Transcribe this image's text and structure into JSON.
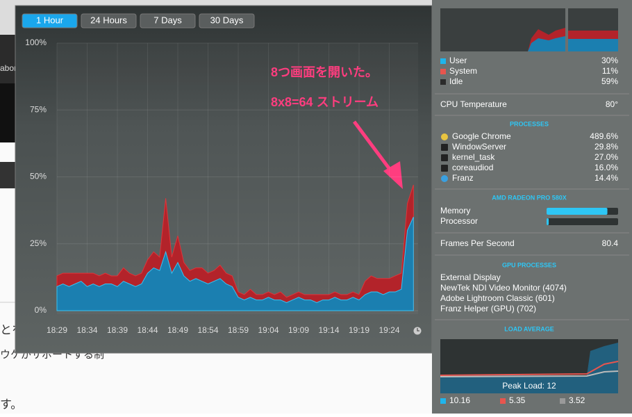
{
  "background": {
    "texts": [
      "abor",
      "とを",
      "ウケがサポートする制",
      "す。"
    ]
  },
  "tabs": {
    "items": [
      "1 Hour",
      "24 Hours",
      "7 Days",
      "30 Days"
    ],
    "active": 0,
    "active_color": "#1aa7ec"
  },
  "chart_data": {
    "type": "area",
    "stacked": true,
    "annotations": [
      "8つ画面を開いた。",
      "8x8=64 ストリーム"
    ],
    "categories": [
      "18:29",
      null,
      null,
      null,
      null,
      "18:34",
      null,
      null,
      null,
      null,
      "18:39",
      null,
      null,
      null,
      null,
      "18:44",
      null,
      null,
      null,
      null,
      "18:49",
      null,
      null,
      null,
      null,
      "18:54",
      null,
      null,
      null,
      null,
      "18:59",
      null,
      null,
      null,
      null,
      "19:04",
      null,
      null,
      null,
      null,
      "19:09",
      null,
      null,
      null,
      null,
      "19:14",
      null,
      null,
      null,
      null,
      "19:19",
      null,
      null,
      null,
      null,
      "19:24",
      null,
      null,
      null,
      null
    ],
    "series": [
      {
        "name": "User",
        "color": "#1b7fb0",
        "values": [
          9,
          10,
          9,
          10,
          11,
          9,
          10,
          9,
          10,
          10,
          9,
          11,
          10,
          9,
          10,
          14,
          16,
          15,
          22,
          14,
          18,
          13,
          11,
          12,
          11,
          10,
          11,
          12,
          10,
          9,
          5,
          4,
          5,
          4,
          4,
          5,
          4,
          4,
          3,
          4,
          5,
          4,
          4,
          3,
          4,
          4,
          5,
          4,
          4,
          5,
          4,
          6,
          7,
          7,
          6,
          7,
          7,
          8,
          30,
          35
        ]
      },
      {
        "name": "System",
        "color": "#b3232a",
        "values": [
          4,
          4,
          5,
          4,
          3,
          5,
          4,
          4,
          4,
          3,
          4,
          5,
          4,
          4,
          4,
          5,
          6,
          5,
          20,
          6,
          10,
          5,
          4,
          4,
          5,
          4,
          4,
          5,
          4,
          4,
          2,
          2,
          3,
          2,
          2,
          2,
          2,
          3,
          2,
          2,
          2,
          2,
          2,
          3,
          2,
          2,
          2,
          2,
          2,
          2,
          2,
          5,
          6,
          5,
          6,
          5,
          6,
          6,
          10,
          12
        ]
      }
    ],
    "ylim": [
      0,
      100
    ],
    "yticks": [
      {
        "value": 0,
        "label": "0%"
      },
      {
        "value": 25,
        "label": "25%"
      },
      {
        "value": 50,
        "label": "50%"
      },
      {
        "value": 75,
        "label": "75%"
      },
      {
        "value": 100,
        "label": "100%"
      }
    ],
    "grid": true
  },
  "menu": {
    "cpu": {
      "rows": [
        {
          "value": "30%"
        },
        {
          "value": "11%"
        },
        {
          "label": "Idle",
          "value": "59%",
          "color": "#2b2b2b"
        }
      ]
    },
    "temperature": {
      "label": "CPU Temperature",
      "value": "80°"
    },
    "processes": {
      "title": "PROCESSES",
      "rows": [
        {
          "name": "Google Chrome",
          "value": "489.6%"
        },
        {
          "name": "WindowServer",
          "value": "29.8%"
        },
        {
          "name": "kernel_task",
          "value": "27.0%"
        },
        {
          "name": "coreaudiod",
          "value": "16.0%"
        },
        {
          "name": "Franz",
          "value": "14.4%"
        }
      ]
    },
    "gpu": {
      "title": "AMD RADEON PRO 580X",
      "xlim": [
        0,
        100
      ],
      "color": "#2ec6f5",
      "bars": [
        {
          "label": "Memory",
          "value": 85
        },
        {
          "label": "Processor",
          "value": 3
        }
      ],
      "fps": {
        "label": "Frames Per Second",
        "value": "80.4"
      }
    },
    "gpu_processes": {
      "title": "GPU PROCESSES",
      "items": [
        "External Display",
        "NewTek NDI Video Monitor (4074)",
        "Adobe Lightroom Classic (601)",
        "Franz Helper (GPU) (702)"
      ]
    },
    "load": {
      "title": "LOAD AVERAGE",
      "peak": "Peak Load: 12",
      "items": [
        {
          "value": "10.16",
          "color": "#1fb5ec"
        },
        {
          "value": "5.35",
          "color": "#e8554e"
        },
        {
          "value": "3.52",
          "color": "#9a9a9a"
        }
      ]
    }
  }
}
